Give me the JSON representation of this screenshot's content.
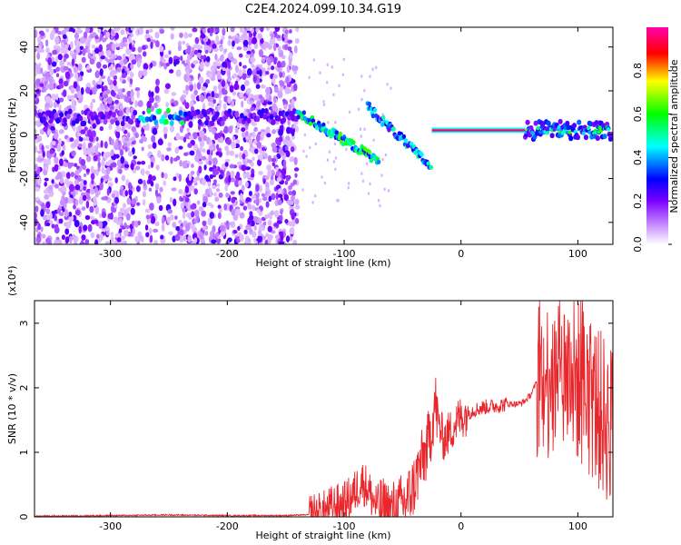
{
  "title": "C2E4.2024.099.10.34.G19",
  "chart_data": [
    {
      "type": "heatmap",
      "xlabel": "Height of straight line (km)",
      "ylabel": "Frequency (Hz)",
      "xlim": [
        -365,
        130
      ],
      "ylim": [
        -50,
        49
      ],
      "xticks": [
        -300,
        -200,
        -100,
        0,
        100
      ],
      "yticks": [
        -40,
        -20,
        0,
        20,
        40
      ],
      "colorbar": {
        "label": "Normalized spectral amplitude",
        "range": [
          0,
          1
        ],
        "ticks": [
          "0.0",
          "0.2",
          "0.4",
          "0.6",
          "0.8"
        ],
        "colors": [
          "#ffffff",
          "#7a00ff",
          "#0000ff",
          "#00ffff",
          "#00ff00",
          "#ffff00",
          "#ff0000",
          "#ff00aa"
        ]
      },
      "features": [
        {
          "name": "noise region",
          "x_range": [
            -365,
            -140
          ],
          "freq_range": [
            -50,
            49
          ],
          "amplitude": 0.15
        },
        {
          "name": "main band",
          "x_range": [
            -290,
            -140
          ],
          "freq": 8,
          "amplitude": 0.4
        },
        {
          "name": "descending trace",
          "x_range": [
            -140,
            -70
          ],
          "freq_start": 10,
          "freq_end": -12,
          "amplitude": 0.5
        },
        {
          "name": "secondary trace",
          "x_range": [
            -80,
            -25
          ],
          "freq_start": 13,
          "freq_end": -15,
          "amplitude": 0.4
        },
        {
          "name": "steady line",
          "x_range": [
            -25,
            55
          ],
          "freq": 2,
          "amplitude": 0.95
        },
        {
          "name": "tail band",
          "x_range": [
            55,
            130
          ],
          "freq": 2,
          "amplitude": 0.5
        }
      ]
    },
    {
      "type": "line",
      "xlabel": "Height of straight line (km)",
      "ylabel": "SNR (10 * v/v)",
      "y_multiplier": "(x10⁴)",
      "xlim": [
        -365,
        130
      ],
      "ylim": [
        0,
        3.35
      ],
      "xticks": [
        -300,
        -200,
        -100,
        0,
        100
      ],
      "yticks": [
        0,
        1,
        2,
        3
      ],
      "color": "#e8262b",
      "series": [
        {
          "x": [
            -365,
            -300,
            -250,
            -200,
            -150,
            -120,
            -110,
            -100,
            -92,
            -85,
            -80,
            -75,
            -70,
            -65,
            -60,
            -55,
            -50,
            -45,
            -40,
            -35,
            -30,
            -25,
            -22,
            -20,
            -15,
            -10,
            -5,
            0,
            5,
            10,
            20,
            30,
            40,
            50,
            55,
            60,
            65,
            70,
            80,
            90,
            100,
            110,
            120,
            130
          ],
          "y": [
            0.01,
            0.02,
            0.03,
            0.02,
            0.02,
            0.04,
            0.15,
            0.2,
            0.35,
            0.55,
            0.45,
            0.25,
            0.15,
            0.1,
            0.08,
            0.1,
            0.2,
            0.3,
            0.5,
            0.8,
            1.0,
            1.4,
            1.8,
            1.5,
            1.2,
            1.3,
            1.45,
            1.55,
            1.6,
            1.65,
            1.7,
            1.72,
            1.75,
            1.75,
            1.8,
            1.9,
            2.1,
            2.2,
            2.0,
            2.2,
            2.1,
            1.9,
            1.6,
            1.4
          ]
        }
      ]
    }
  ]
}
